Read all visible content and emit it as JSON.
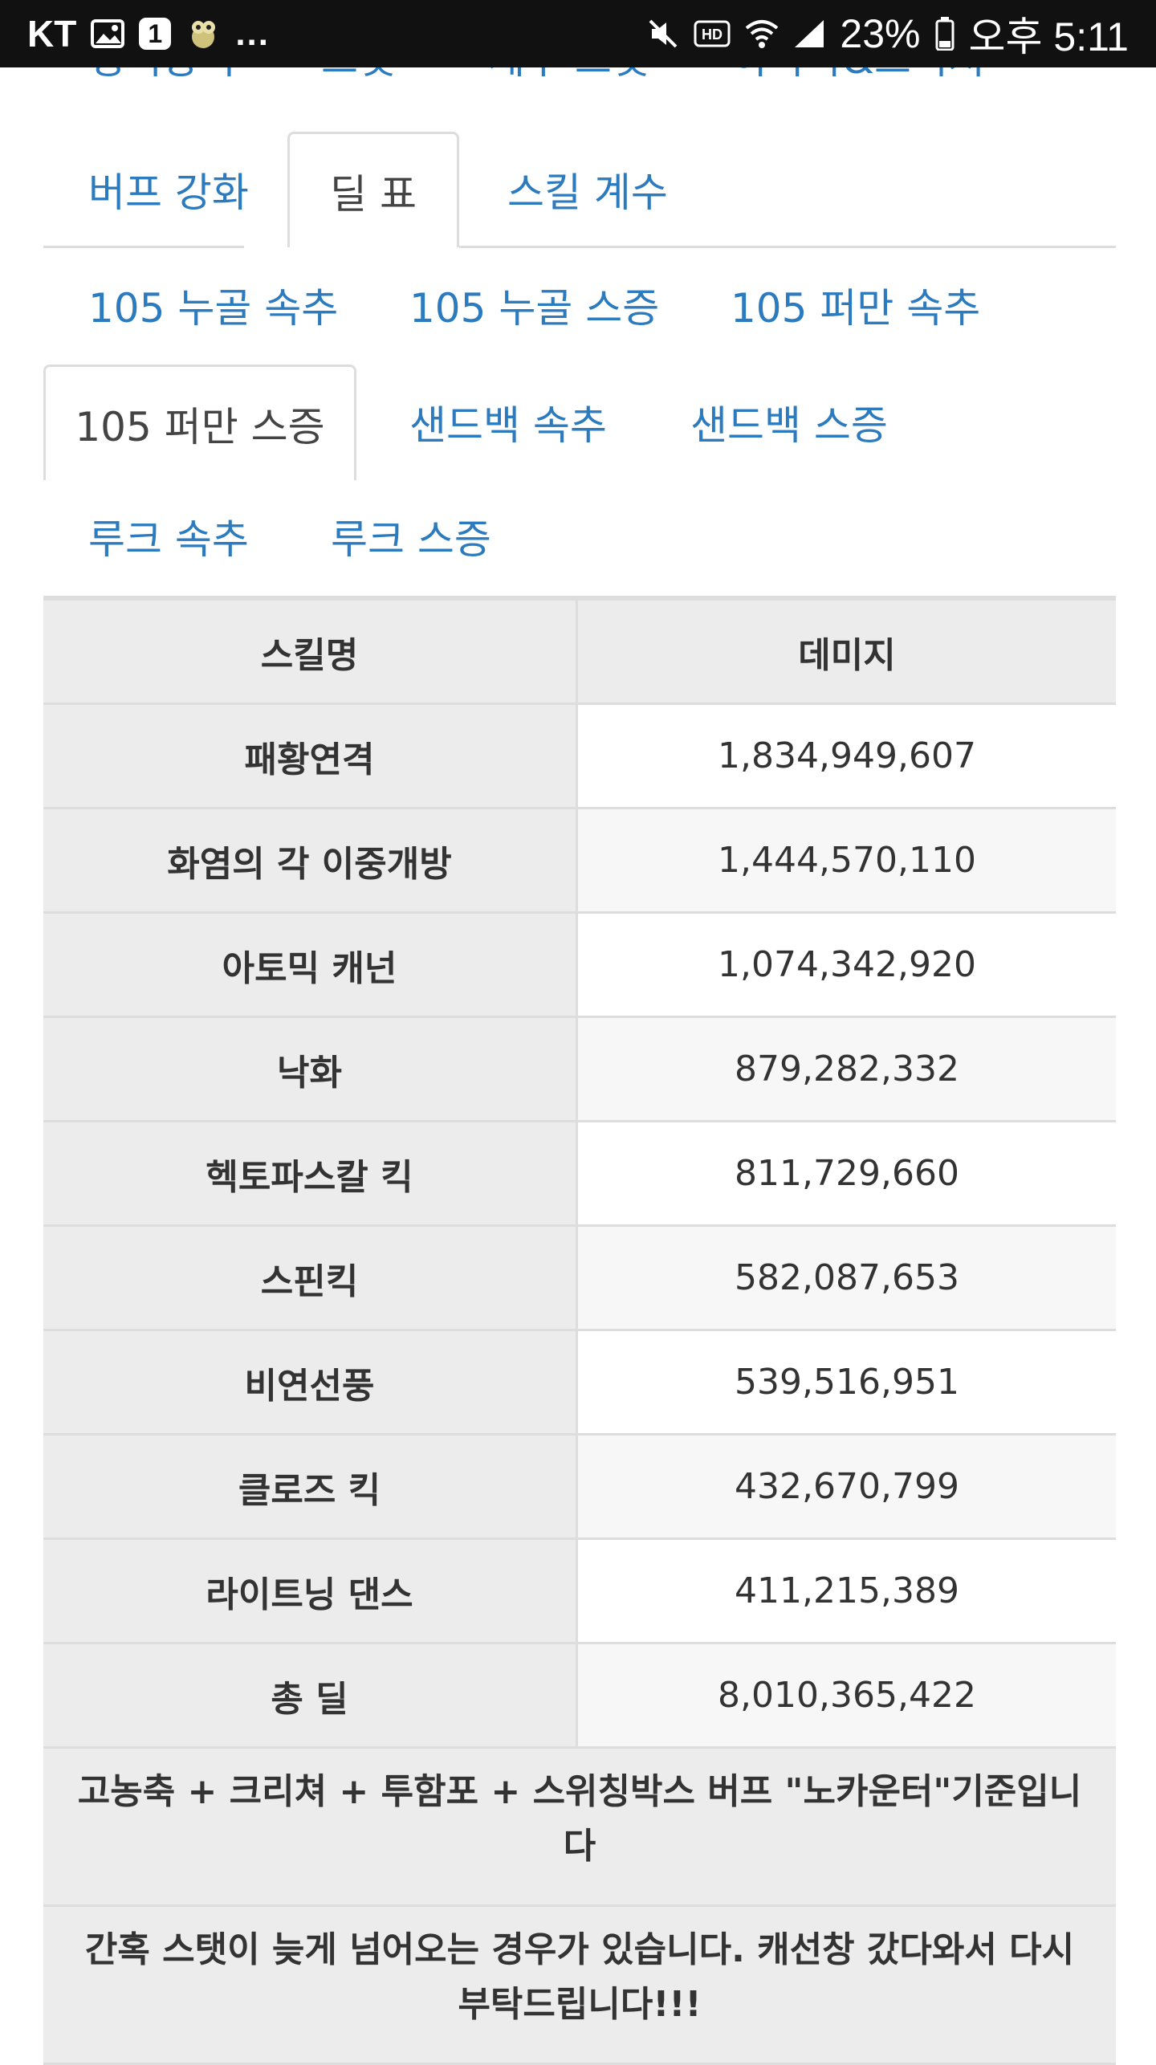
{
  "statusbar": {
    "carrier": "KT",
    "notification_count": "1",
    "more": "...",
    "battery": "23%",
    "time": "오후 5:11"
  },
  "tabs_top": {
    "row0": [
      "정석장비",
      "스탯",
      "세부 스탯",
      "아바타&크리쳐"
    ],
    "row1": [
      "버프 강화",
      "딜 표",
      "스킬 계수"
    ],
    "active": "딜 표"
  },
  "tabs_sub": {
    "row0": [
      "105 누골 속추",
      "105 누골 스증",
      "105 퍼만 속추"
    ],
    "row1": [
      "105 퍼만 스증",
      "샌드백 속추",
      "샌드백 스증"
    ],
    "row2": [
      "루크 속추",
      "루크 스증"
    ],
    "active": "105 퍼만 스증"
  },
  "table": {
    "headers": [
      "스킬명",
      "데미지"
    ],
    "rows": [
      {
        "name": "패황연격",
        "value": "1,834,949,607"
      },
      {
        "name": "화염의 각 이중개방",
        "value": "1,444,570,110"
      },
      {
        "name": "아토믹 캐넌",
        "value": "1,074,342,920"
      },
      {
        "name": "낙화",
        "value": "879,282,332"
      },
      {
        "name": "헥토파스칼 킥",
        "value": "811,729,660"
      },
      {
        "name": "스핀킥",
        "value": "582,087,653"
      },
      {
        "name": "비연선풍",
        "value": "539,516,951"
      },
      {
        "name": "클로즈 킥",
        "value": "432,670,799"
      },
      {
        "name": "라이트닝 댄스",
        "value": "411,215,389"
      },
      {
        "name": "총 딜",
        "value": "8,010,365,422"
      }
    ],
    "notes": [
      "고농축 + 크리쳐 + 투함포 + 스위칭박스 버프 \"노카운터\"기준입니다",
      "간혹 스탯이 늦게 넘어오는 경우가 있습니다. 캐선창 갔다와서 다시 부탁드립니다!!!"
    ]
  },
  "colors": {
    "link": "#2c7bbf",
    "cell_gray": "#ececec",
    "border": "#dddddd"
  }
}
